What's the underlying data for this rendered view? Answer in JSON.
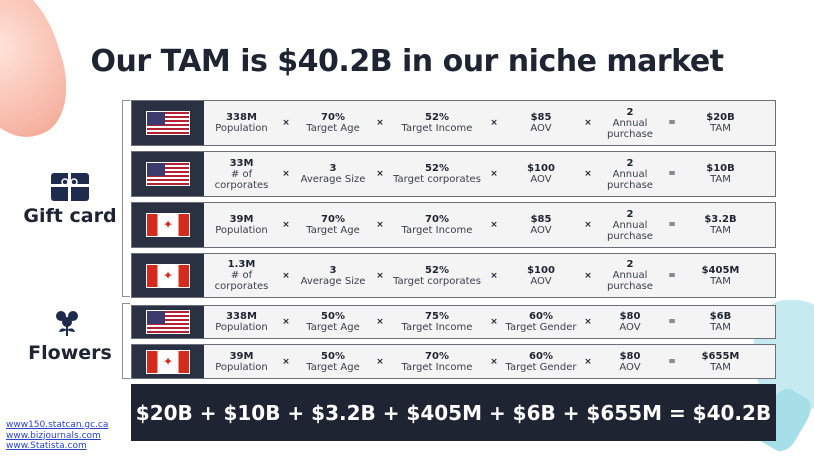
{
  "title": "Our TAM is $40.2B in our niche market",
  "segments": [
    {
      "label": "Gift card",
      "icon": "gift-card-icon"
    },
    {
      "label": "Flowers",
      "icon": "flower-icon"
    }
  ],
  "rows": [
    {
      "flag": "us-flag-icon",
      "c1v": "338M",
      "c1l": "Population",
      "c2v": "70%",
      "c2l": "Target Age",
      "c3v": "52%",
      "c3l": "Target Income",
      "c4v": "$85",
      "c4l": "AOV",
      "c5v": "2",
      "c5l": "Annual purchase",
      "tv": "$20B",
      "tl": "TAM"
    },
    {
      "flag": "us-flag-icon",
      "c1v": "33M",
      "c1l": "# of corporates",
      "c2v": "3",
      "c2l": "Average Size",
      "c3v": "52%",
      "c3l": "Target corporates",
      "c4v": "$100",
      "c4l": "AOV",
      "c5v": "2",
      "c5l": "Annual purchase",
      "tv": "$10B",
      "tl": "TAM"
    },
    {
      "flag": "canada-flag-icon",
      "c1v": "39M",
      "c1l": "Population",
      "c2v": "70%",
      "c2l": "Target Age",
      "c3v": "70%",
      "c3l": "Target Income",
      "c4v": "$85",
      "c4l": "AOV",
      "c5v": "2",
      "c5l": "Annual purchase",
      "tv": "$3.2B",
      "tl": "TAM"
    },
    {
      "flag": "canada-flag-icon",
      "c1v": "1.3M",
      "c1l": "# of corporates",
      "c2v": "3",
      "c2l": "Average Size",
      "c3v": "52%",
      "c3l": "Target corporates",
      "c4v": "$100",
      "c4l": "AOV",
      "c5v": "2",
      "c5l": "Annual purchase",
      "tv": "$405M",
      "tl": "TAM"
    },
    {
      "flag": "us-flag-icon",
      "c1v": "338M",
      "c1l": "Population",
      "c2v": "50%",
      "c2l": "Target Age",
      "c3v": "75%",
      "c3l": "Target Income",
      "c4v": "60%",
      "c4l": "Target Gender",
      "c5v": "$80",
      "c5l": "AOV",
      "tv": "$6B",
      "tl": "TAM"
    },
    {
      "flag": "canada-flag-icon",
      "c1v": "39M",
      "c1l": "Population",
      "c2v": "50%",
      "c2l": "Target Age",
      "c3v": "70%",
      "c3l": "Target Income",
      "c4v": "60%",
      "c4l": "Target Gender",
      "c5v": "$80",
      "c5l": "AOV",
      "tv": "$655M",
      "tl": "TAM"
    }
  ],
  "operators": {
    "mult": "×",
    "eq": "="
  },
  "total": "$20B + $10B + $3.2B + $405M + $6B + $655M = $40.2B",
  "sources": [
    "www150.statcan.gc.ca",
    "www.bizjournals.com",
    "www.Statista.com"
  ],
  "colors": {
    "dark": "#1f2433",
    "accent_blue": "#1e2b4d",
    "link": "#2b45c9"
  }
}
